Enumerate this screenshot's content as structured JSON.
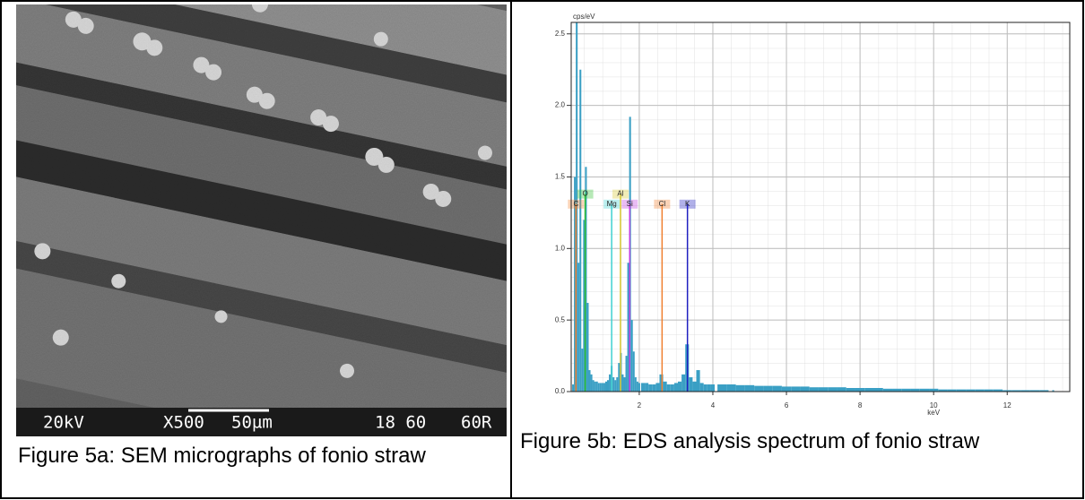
{
  "figure_a": {
    "image_labels": {
      "voltage": "20kV",
      "magnification": "X500",
      "scale": "50µm",
      "code": "18 60",
      "id": "60R"
    },
    "caption": "Figure 5a: SEM micrographs of fonio straw"
  },
  "figure_b": {
    "caption": "Figure 5b: EDS analysis spectrum of fonio straw"
  },
  "chart_data": {
    "type": "spectrum",
    "ylabel": "cps/eV",
    "xlabel": "keV",
    "color": "#3a9fc4",
    "xlim": [
      0.15,
      13.7
    ],
    "ylim": [
      0,
      2.58
    ],
    "xticks": [
      2,
      4,
      6,
      8,
      10,
      12
    ],
    "yticks": [
      {
        "value": 0,
        "label": "0.0"
      },
      0.5,
      {
        "value": 1,
        "label": "1.0"
      },
      1.5,
      {
        "value": 2,
        "label": "2.0"
      },
      2.5
    ],
    "grid": true,
    "x": [
      0.2,
      0.25,
      0.3,
      0.35,
      0.4,
      0.45,
      0.5,
      0.55,
      0.6,
      0.65,
      0.7,
      0.75,
      0.8,
      0.85,
      0.9,
      0.95,
      1.0,
      1.05,
      1.1,
      1.15,
      1.2,
      1.25,
      1.3,
      1.35,
      1.4,
      1.45,
      1.5,
      1.55,
      1.6,
      1.65,
      1.7,
      1.75,
      1.8,
      1.85,
      1.9,
      1.95,
      2.0,
      2.1,
      2.2,
      2.3,
      2.4,
      2.5,
      2.6,
      2.7,
      2.8,
      2.9,
      3.0,
      3.1,
      3.2,
      3.3,
      3.4,
      3.5,
      3.6,
      3.7,
      3.8,
      3.9,
      4.0,
      4.25,
      4.5,
      4.75,
      5.0,
      5.25,
      5.5,
      5.75,
      6.0,
      6.25,
      6.5,
      6.75,
      7.0,
      7.25,
      7.5,
      7.75,
      8.0,
      8.25,
      8.5,
      8.75,
      9.0,
      9.25,
      9.5,
      9.75,
      10.0,
      10.25,
      10.5,
      10.75,
      11.0,
      11.25,
      11.5,
      11.75,
      12.0,
      12.25,
      12.5,
      12.75,
      13.0,
      13.25
    ],
    "values": [
      0.05,
      1.5,
      2.58,
      0.9,
      2.25,
      0.3,
      1.2,
      1.57,
      0.62,
      0.15,
      0.12,
      0.08,
      0.07,
      0.07,
      0.06,
      0.06,
      0.06,
      0.06,
      0.07,
      0.08,
      0.12,
      0.18,
      0.1,
      0.08,
      0.1,
      0.2,
      0.27,
      0.12,
      0.1,
      0.25,
      0.9,
      1.92,
      0.5,
      0.28,
      0.1,
      0.07,
      0.06,
      0.06,
      0.06,
      0.05,
      0.05,
      0.06,
      0.12,
      0.07,
      0.05,
      0.05,
      0.06,
      0.07,
      0.12,
      0.33,
      0.1,
      0.07,
      0.15,
      0.06,
      0.05,
      0.05,
      0.05,
      0.05,
      0.05,
      0.045,
      0.045,
      0.04,
      0.04,
      0.04,
      0.035,
      0.035,
      0.035,
      0.03,
      0.03,
      0.03,
      0.03,
      0.025,
      0.025,
      0.025,
      0.025,
      0.02,
      0.02,
      0.02,
      0.02,
      0.02,
      0.02,
      0.015,
      0.015,
      0.015,
      0.015,
      0.015,
      0.015,
      0.015,
      0.01,
      0.01,
      0.01,
      0.01,
      0.01,
      0.01
    ],
    "markers": [
      {
        "label": "C",
        "x": 0.28,
        "y": 1.31,
        "color": "#f08030"
      },
      {
        "label": "O",
        "x": 0.53,
        "y": 1.38,
        "color": "#30c030"
      },
      {
        "label": "Mg",
        "x": 1.25,
        "y": 1.31,
        "color": "#40d0d0"
      },
      {
        "label": "Al",
        "x": 1.49,
        "y": 1.38,
        "color": "#d8c830"
      },
      {
        "label": "Si",
        "x": 1.74,
        "y": 1.31,
        "color": "#c040e0"
      },
      {
        "label": "Cl",
        "x": 2.62,
        "y": 1.31,
        "color": "#f08030"
      },
      {
        "label": "K",
        "x": 3.31,
        "y": 1.31,
        "color": "#2020c0"
      }
    ]
  }
}
